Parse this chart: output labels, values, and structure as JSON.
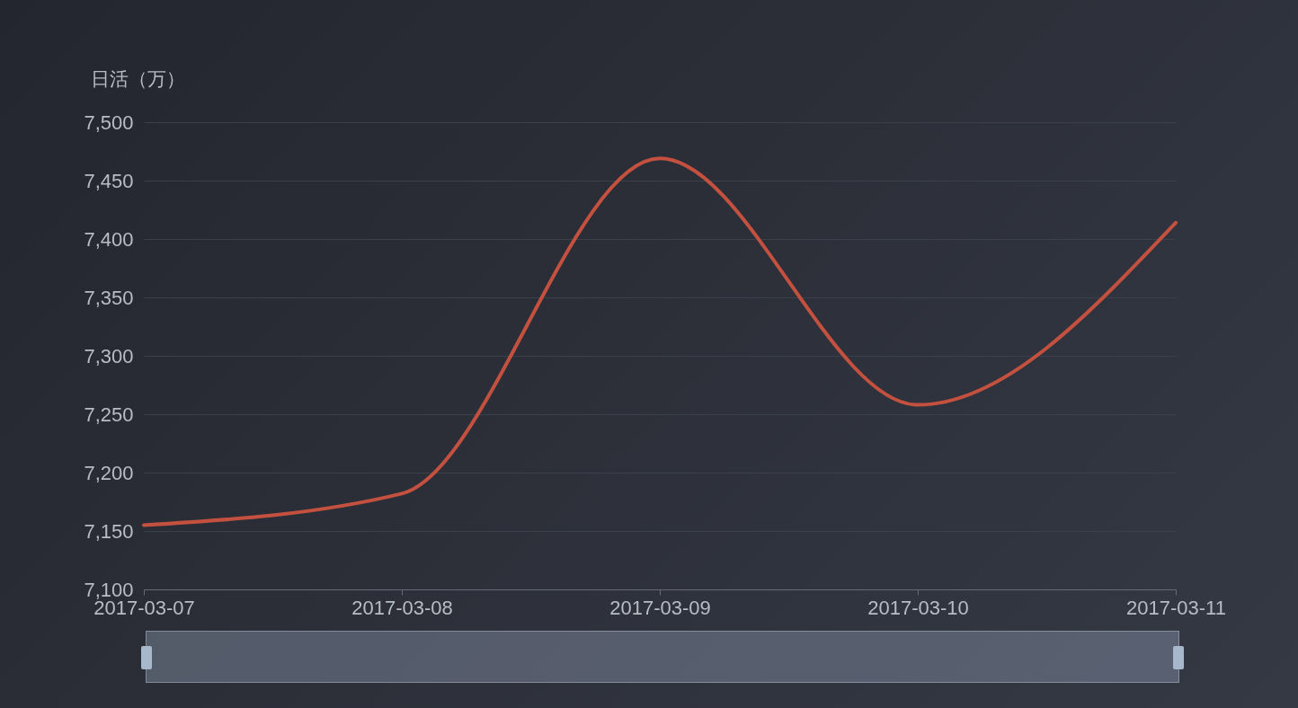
{
  "chart_data": {
    "type": "line",
    "ylabel": "日活（万）",
    "categories": [
      "2017-03-07",
      "2017-03-08",
      "2017-03-09",
      "2017-03-10",
      "2017-03-11"
    ],
    "series": [
      {
        "color": "#c4513f",
        "values": [
          7155,
          7182,
          7469,
          7258,
          7414
        ]
      }
    ],
    "ylim": [
      7100,
      7500
    ],
    "yticks": [
      {
        "value": 7100,
        "label": "7,100"
      },
      {
        "value": 7150,
        "label": "7,150"
      },
      {
        "value": 7200,
        "label": "7,200"
      },
      {
        "value": 7250,
        "label": "7,250"
      },
      {
        "value": 7300,
        "label": "7,300"
      },
      {
        "value": 7350,
        "label": "7,350"
      },
      {
        "value": 7400,
        "label": "7,400"
      },
      {
        "value": 7450,
        "label": "7,450"
      },
      {
        "value": 7500,
        "label": "7,500"
      }
    ],
    "grid": "y",
    "marker": "none",
    "line_style": "solid"
  }
}
